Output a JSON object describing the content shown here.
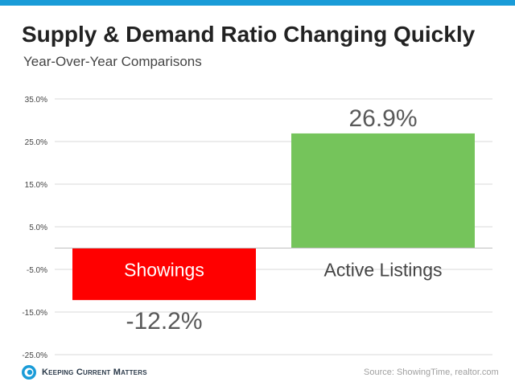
{
  "header": {
    "title": "Supply & Demand Ratio Changing Quickly",
    "subtitle": "Year-Over-Year Comparisons"
  },
  "colors": {
    "top_bar": "#1a9cd8",
    "showings_bar": "#ff0000",
    "listings_bar": "#75c45b",
    "gridline": "#d9d9d9",
    "axis_label": "#444444",
    "value_label": "#595959"
  },
  "chart_data": {
    "type": "bar",
    "categories": [
      "Showings",
      "Active Listings"
    ],
    "values": [
      -12.2,
      26.9
    ],
    "value_labels": [
      "-12.2%",
      "26.9%"
    ],
    "y_ticks": [
      35.0,
      25.0,
      15.0,
      5.0,
      -5.0,
      -15.0,
      -25.0
    ],
    "y_tick_labels": [
      "35.0%",
      "25.0%",
      "15.0%",
      "5.0%",
      "-5.0%",
      "-15.0%",
      "-25.0%"
    ],
    "ylim": [
      -25,
      35
    ],
    "grid": true,
    "title": "",
    "xlabel": "",
    "ylabel": ""
  },
  "footer": {
    "brand": "Keeping Current Matters",
    "brand_icon": "kcm-logo-icon",
    "source": "Source: ShowingTime, realtor.com"
  }
}
